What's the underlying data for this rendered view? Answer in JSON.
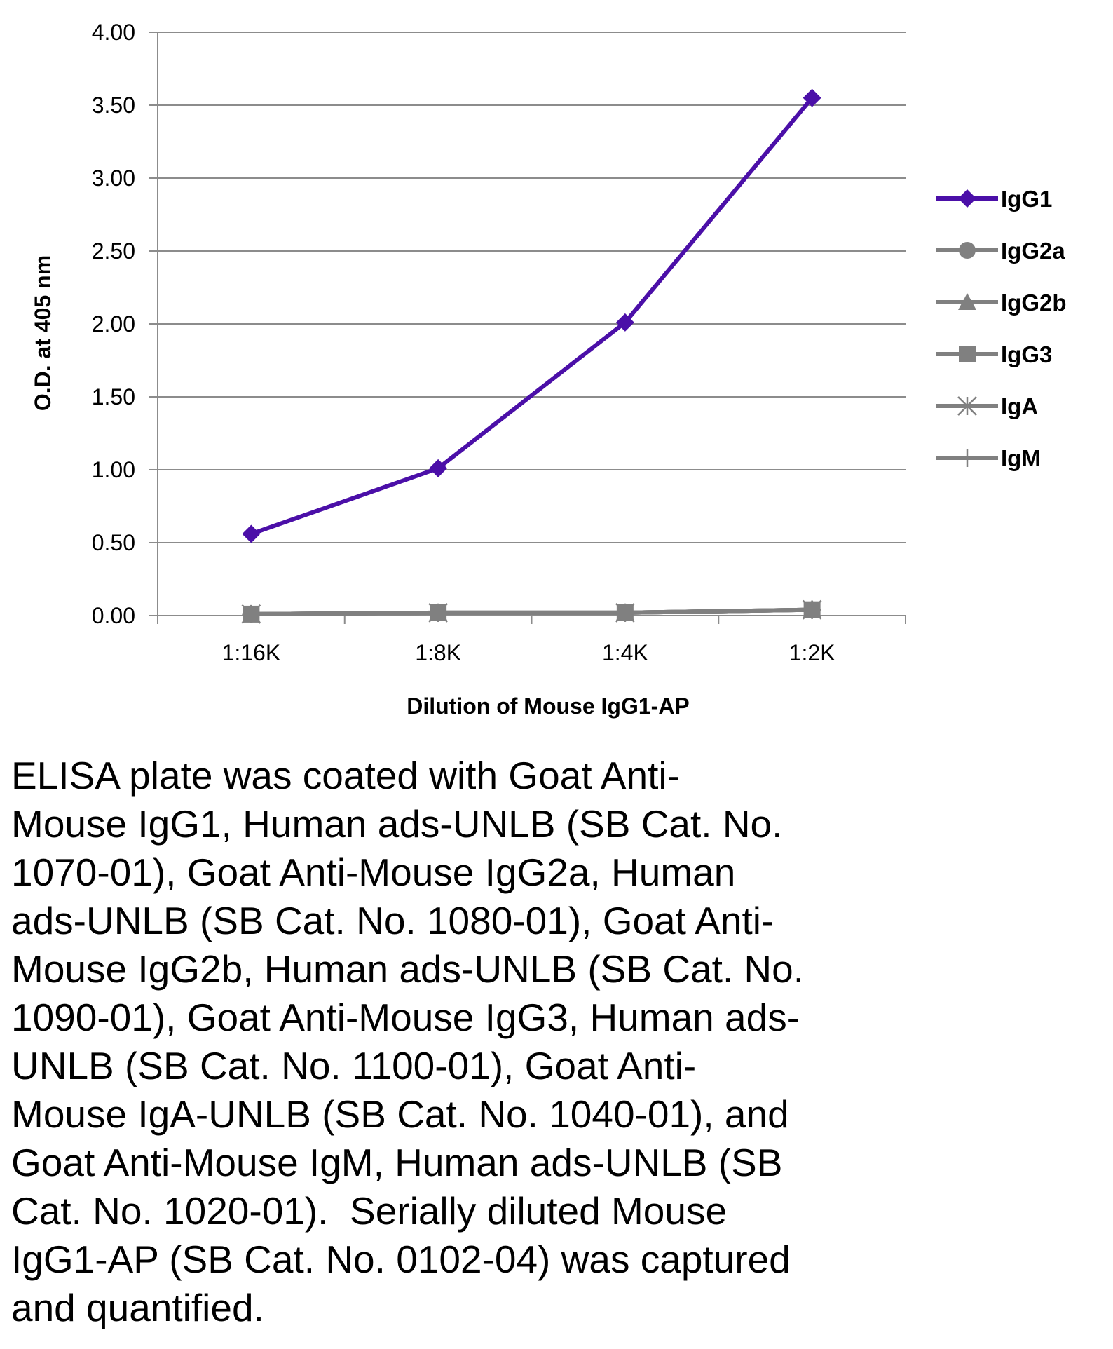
{
  "chart_data": {
    "type": "line",
    "xlabel": "Dilution of Mouse IgG1-AP",
    "ylabel": "O.D. at 405 nm",
    "categories": [
      "1:16K",
      "1:8K",
      "1:4K",
      "1:2K"
    ],
    "ylim": [
      0,
      4
    ],
    "yticks": [
      "0.00",
      "0.50",
      "1.00",
      "1.50",
      "2.00",
      "2.50",
      "3.00",
      "3.50",
      "4.00"
    ],
    "ytick_values": [
      0,
      0.5,
      1,
      1.5,
      2,
      2.5,
      3,
      3.5,
      4
    ],
    "grid": true,
    "legend_position": "right",
    "series": [
      {
        "name": "IgG1",
        "marker": "diamond",
        "color": "#4B0FA8",
        "values": [
          0.56,
          1.01,
          2.01,
          3.55
        ]
      },
      {
        "name": "IgG2a",
        "marker": "circle",
        "color": "#808080",
        "values": [
          0.01,
          0.02,
          0.02,
          0.04
        ]
      },
      {
        "name": "IgG2b",
        "marker": "triangle",
        "color": "#808080",
        "values": [
          0.01,
          0.02,
          0.02,
          0.04
        ]
      },
      {
        "name": "IgG3",
        "marker": "square",
        "color": "#808080",
        "values": [
          0.01,
          0.02,
          0.02,
          0.04
        ]
      },
      {
        "name": "IgA",
        "marker": "asterisk",
        "color": "#808080",
        "values": [
          0.01,
          0.02,
          0.02,
          0.04
        ]
      },
      {
        "name": "IgM",
        "marker": "plus",
        "color": "#808080",
        "values": [
          0.01,
          0.02,
          0.02,
          0.04
        ]
      }
    ]
  },
  "caption": "ELISA plate was coated with Goat Anti-\nMouse IgG1, Human ads-UNLB (SB Cat. No.\n1070-01), Goat Anti-Mouse IgG2a, Human\nads-UNLB (SB Cat. No. 1080-01), Goat Anti-\nMouse IgG2b, Human ads-UNLB (SB Cat. No.\n1090-01), Goat Anti-Mouse IgG3, Human ads-\nUNLB (SB Cat. No. 1100-01), Goat Anti-\nMouse IgA-UNLB (SB Cat. No. 1040-01), and\nGoat Anti-Mouse IgM, Human ads-UNLB (SB\nCat. No. 1020-01).  Serially diluted Mouse\nIgG1-AP (SB Cat. No. 0102-04) was captured\nand quantified."
}
